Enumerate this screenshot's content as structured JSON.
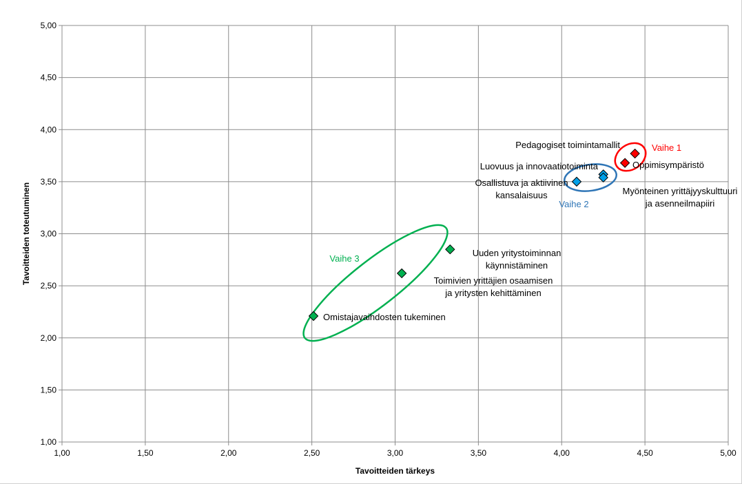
{
  "chart_data": {
    "type": "scatter",
    "xlabel": "Tavoitteiden tärkeys",
    "ylabel": "Tavoitteiden toteutuminen",
    "xlim": [
      1.0,
      5.0
    ],
    "ylim": [
      1.0,
      5.0
    ],
    "x_ticks": [
      "1,00",
      "1,50",
      "2,00",
      "2,50",
      "3,00",
      "3,50",
      "4,00",
      "4,50",
      "5,00"
    ],
    "y_ticks": [
      "1,00",
      "1,50",
      "2,00",
      "2,50",
      "3,00",
      "3,50",
      "4,00",
      "4,50",
      "5,00"
    ],
    "grid": true,
    "legend": "none",
    "points": [
      {
        "x": 4.38,
        "y": 3.68,
        "color": "#ff0000",
        "label": [
          "Oppimisympäristö"
        ]
      },
      {
        "x": 4.44,
        "y": 3.77,
        "color": "#ff0000",
        "label": [
          "Pedagogiset toimintamallit"
        ]
      },
      {
        "x": 4.25,
        "y": 3.57,
        "color": "#00a0e8",
        "label": [
          "Luovuus ja innovaatiotoiminta"
        ]
      },
      {
        "x": 4.25,
        "y": 3.54,
        "color": "#00a0e8",
        "label": [
          "Myönteinen yrittäjyyskulttuuri",
          "ja asenneilmapiiri"
        ]
      },
      {
        "x": 4.09,
        "y": 3.5,
        "color": "#00a0e8",
        "label": [
          "Osallistuva ja aktiivinen",
          "kansalaisuus"
        ]
      },
      {
        "x": 3.33,
        "y": 2.85,
        "color": "#00b050",
        "label": [
          "Uuden yritystoiminnan",
          "käynnistäminen"
        ]
      },
      {
        "x": 3.04,
        "y": 2.62,
        "color": "#00b050",
        "label": [
          "Toimivien yrittäjien osaamisen",
          "ja yritysten kehittäminen"
        ]
      },
      {
        "x": 2.51,
        "y": 2.21,
        "color": "#00b050",
        "label": [
          "Omistajavaihdosten tukeminen"
        ]
      }
    ],
    "groups": [
      {
        "label": "Vaihe 1",
        "color": "#ff0000"
      },
      {
        "label": "Vaihe 2",
        "color": "#2e75b6"
      },
      {
        "label": "Vaihe 3",
        "color": "#00b050"
      }
    ]
  }
}
